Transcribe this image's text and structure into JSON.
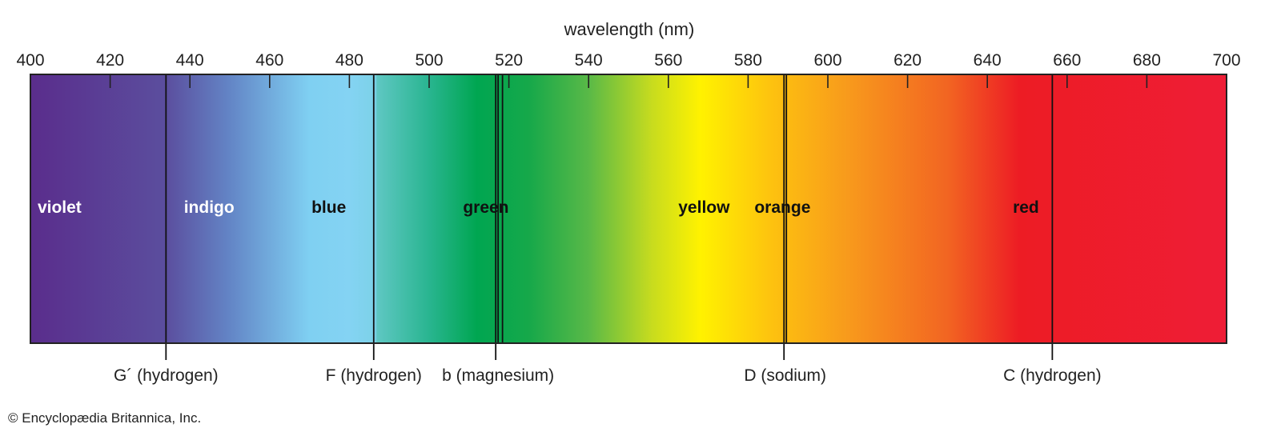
{
  "axis": {
    "label": "wavelength (nm)",
    "min": 400,
    "max": 700,
    "ticks": [
      "400",
      "420",
      "440",
      "460",
      "480",
      "500",
      "520",
      "540",
      "560",
      "580",
      "600",
      "620",
      "640",
      "660",
      "680",
      "700"
    ]
  },
  "gradient_stops": [
    {
      "nm": 400,
      "color": "#5a2d8c"
    },
    {
      "nm": 434,
      "color": "#5b4e9e"
    },
    {
      "nm": 450,
      "color": "#6385c6"
    },
    {
      "nm": 470,
      "color": "#7fd0f2"
    },
    {
      "nm": 480,
      "color": "#84d3f3"
    },
    {
      "nm": 486.5,
      "color": "#7cd2e8"
    },
    {
      "nm": 487,
      "color": "#5ec7c2"
    },
    {
      "nm": 500,
      "color": "#29b590"
    },
    {
      "nm": 512,
      "color": "#00a651"
    },
    {
      "nm": 525,
      "color": "#16a84a"
    },
    {
      "nm": 540,
      "color": "#59b947"
    },
    {
      "nm": 556,
      "color": "#c8dc1e"
    },
    {
      "nm": 568,
      "color": "#fff200"
    },
    {
      "nm": 586,
      "color": "#fdc20f"
    },
    {
      "nm": 605,
      "color": "#f89a1c"
    },
    {
      "nm": 630,
      "color": "#f26522"
    },
    {
      "nm": 648,
      "color": "#ed1c24"
    },
    {
      "nm": 700,
      "color": "#ee1d36"
    }
  ],
  "color_bands": [
    {
      "label": "violet",
      "nm": 401.8,
      "text_color": "#ffffff"
    },
    {
      "label": "indigo",
      "nm": 438.5,
      "text_color": "#ffffff"
    },
    {
      "label": "blue",
      "nm": 470.5,
      "text_color": "#111111"
    },
    {
      "label": "green",
      "nm": 508.5,
      "text_color": "#111111"
    },
    {
      "label": "yellow",
      "nm": 562.5,
      "text_color": "#111111"
    },
    {
      "label": "orange",
      "nm": 581.6,
      "text_color": "#111111"
    },
    {
      "label": "red",
      "nm": 646.4,
      "text_color": "#111111"
    }
  ],
  "spectral_lines": [
    {
      "nm": 434.0,
      "label": "G´ (hydrogen)",
      "label_nm": 434.0
    },
    {
      "nm": 486.1,
      "label": "F (hydrogen)",
      "label_nm": 486.1
    },
    {
      "nm": 516.7,
      "label": "b (magnesium)",
      "label_nm": 517.3
    },
    {
      "nm": 517.3,
      "label": "",
      "label_nm": 517.3
    },
    {
      "nm": 518.4,
      "label": "",
      "label_nm": 517.3
    },
    {
      "nm": 589.0,
      "label": "D (sodium)",
      "label_nm": 589.3
    },
    {
      "nm": 589.6,
      "label": "",
      "label_nm": 589.3
    },
    {
      "nm": 656.3,
      "label": "C (hydrogen)",
      "label_nm": 656.3
    }
  ],
  "credit": "© Encyclopædia Britannica, Inc."
}
